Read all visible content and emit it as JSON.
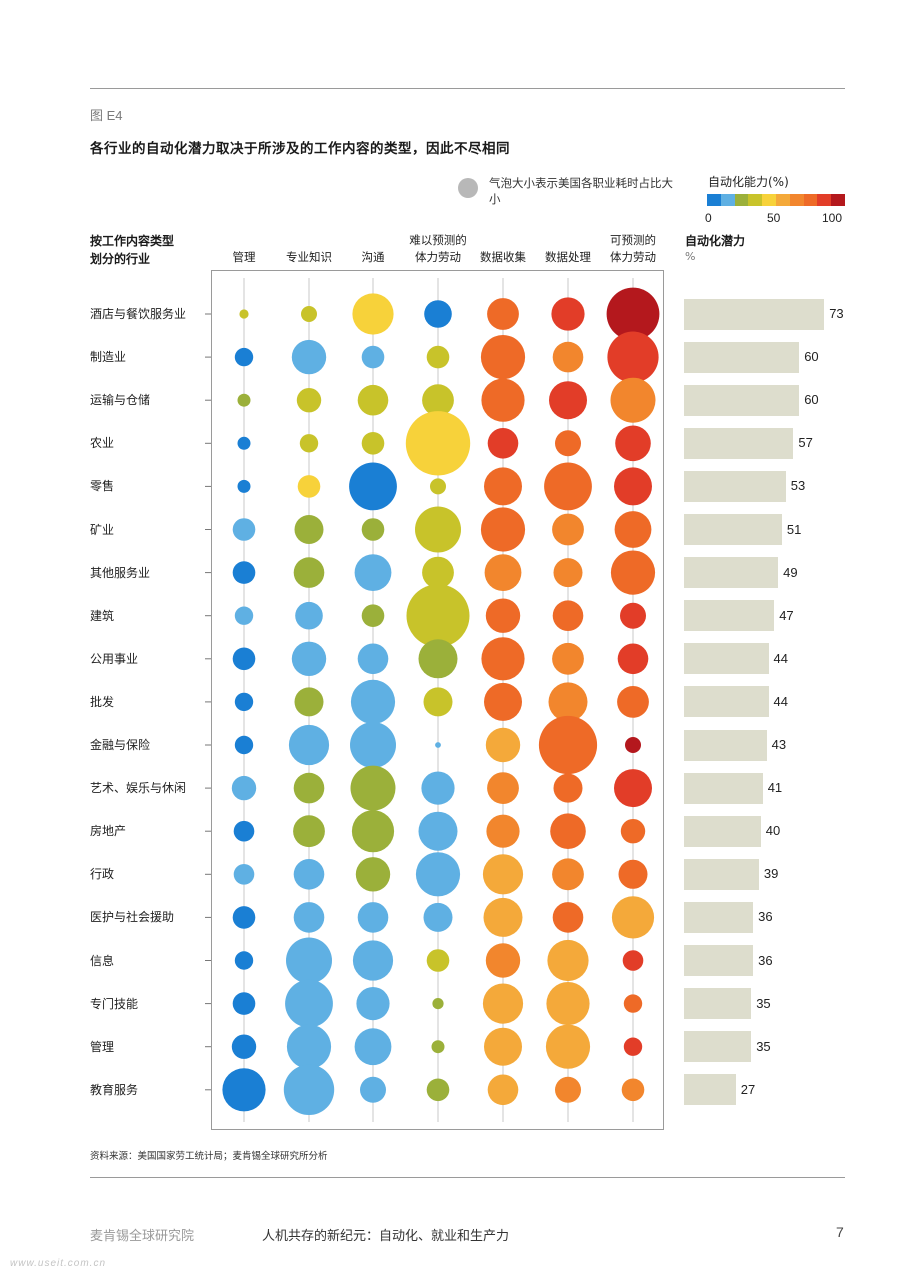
{
  "figure_label": "图 E4",
  "title": "各行业的自动化潜力取决于所涉及的工作内容的类型，因此不尽相同",
  "bubble_legend": "气泡大小表示美国各职业耗时占比大小",
  "color_scale": {
    "title": "自动化能力(%)",
    "ticks": [
      "0",
      "50",
      "100"
    ],
    "colors": [
      "#1a7fd4",
      "#5fb0e3",
      "#9bb03a",
      "#c8c32a",
      "#f7d23a",
      "#f4a93a",
      "#f2862d",
      "#ee6a27",
      "#e23d28",
      "#b4181d"
    ]
  },
  "row_header": [
    "按工作内容类型",
    "划分的行业"
  ],
  "potential_header": {
    "title": "自动化潜力",
    "unit": "%"
  },
  "source": "资料来源：美国国家劳工统计局；麦肯锡全球研究所分析",
  "footer": {
    "org": "麦肯锡全球研究院",
    "report": "人机共存的新纪元：自动化、就业和生产力",
    "page": "7"
  },
  "watermark": "www.useit.com.cn",
  "chart_data": {
    "type": "bubble-matrix",
    "columns": [
      [
        "管理"
      ],
      [
        "专业知识"
      ],
      [
        "沟通"
      ],
      [
        "难以预测的",
        "体力劳动"
      ],
      [
        "数据收集"
      ],
      [
        "数据处理"
      ],
      [
        "可预测的",
        "体力劳动"
      ]
    ],
    "rows": [
      {
        "industry": "酒店与餐饮服务业",
        "potential": 73,
        "bubbles": [
          [
            1,
            3
          ],
          [
            3,
            3
          ],
          [
            20,
            4
          ],
          [
            9,
            0
          ],
          [
            12,
            7
          ],
          [
            13,
            8
          ],
          [
            33,
            9
          ]
        ]
      },
      {
        "industry": "制造业",
        "potential": 60,
        "bubbles": [
          [
            4,
            0
          ],
          [
            14,
            1
          ],
          [
            6,
            1
          ],
          [
            6,
            3
          ],
          [
            23,
            7
          ],
          [
            11,
            6
          ],
          [
            31,
            8
          ]
        ]
      },
      {
        "industry": "运输与仓储",
        "potential": 60,
        "bubbles": [
          [
            2,
            2
          ],
          [
            7,
            3
          ],
          [
            11,
            3
          ],
          [
            12,
            3
          ],
          [
            22,
            7
          ],
          [
            17,
            8
          ],
          [
            24,
            6
          ]
        ]
      },
      {
        "industry": "农业",
        "potential": 57,
        "bubbles": [
          [
            2,
            0
          ],
          [
            4,
            3
          ],
          [
            6,
            3
          ],
          [
            49,
            4
          ],
          [
            11,
            8
          ],
          [
            8,
            7
          ],
          [
            15,
            8
          ]
        ]
      },
      {
        "industry": "零售",
        "potential": 53,
        "bubbles": [
          [
            2,
            0
          ],
          [
            6,
            4
          ],
          [
            27,
            0
          ],
          [
            3,
            3
          ],
          [
            17,
            7
          ],
          [
            27,
            7
          ],
          [
            17,
            8
          ]
        ]
      },
      {
        "industry": "矿业",
        "potential": 51,
        "bubbles": [
          [
            6,
            1
          ],
          [
            10,
            2
          ],
          [
            6,
            2
          ],
          [
            25,
            3
          ],
          [
            23,
            7
          ],
          [
            12,
            6
          ],
          [
            16,
            7
          ]
        ]
      },
      {
        "industry": "其他服务业",
        "potential": 49,
        "bubbles": [
          [
            6,
            0
          ],
          [
            11,
            2
          ],
          [
            16,
            1
          ],
          [
            12,
            3
          ],
          [
            16,
            6
          ],
          [
            10,
            6
          ],
          [
            23,
            7
          ]
        ]
      },
      {
        "industry": "建筑",
        "potential": 47,
        "bubbles": [
          [
            4,
            1
          ],
          [
            9,
            1
          ],
          [
            6,
            2
          ],
          [
            47,
            3
          ],
          [
            14,
            7
          ],
          [
            11,
            7
          ],
          [
            8,
            8
          ]
        ]
      },
      {
        "industry": "公用事业",
        "potential": 44,
        "bubbles": [
          [
            6,
            0
          ],
          [
            14,
            1
          ],
          [
            11,
            1
          ],
          [
            18,
            2
          ],
          [
            22,
            7
          ],
          [
            12,
            6
          ],
          [
            11,
            8
          ]
        ]
      },
      {
        "industry": "批发",
        "potential": 44,
        "bubbles": [
          [
            4,
            0
          ],
          [
            10,
            2
          ],
          [
            23,
            1
          ],
          [
            10,
            3
          ],
          [
            17,
            7
          ],
          [
            18,
            6
          ],
          [
            12,
            7
          ]
        ]
      },
      {
        "industry": "金融与保险",
        "potential": 43,
        "bubbles": [
          [
            4,
            0
          ],
          [
            19,
            1
          ],
          [
            25,
            1
          ],
          [
            0.4,
            1
          ],
          [
            14,
            5
          ],
          [
            40,
            7
          ],
          [
            3,
            9
          ]
        ]
      },
      {
        "industry": "艺术、娱乐与休闲",
        "potential": 41,
        "bubbles": [
          [
            7,
            1
          ],
          [
            11,
            2
          ],
          [
            24,
            2
          ],
          [
            13,
            1
          ],
          [
            12,
            6
          ],
          [
            10,
            7
          ],
          [
            17,
            8
          ]
        ]
      },
      {
        "industry": "房地产",
        "potential": 40,
        "bubbles": [
          [
            5,
            0
          ],
          [
            12,
            2
          ],
          [
            21,
            2
          ],
          [
            18,
            1
          ],
          [
            13,
            6
          ],
          [
            15,
            7
          ],
          [
            7,
            7
          ]
        ]
      },
      {
        "industry": "行政",
        "potential": 39,
        "bubbles": [
          [
            5,
            1
          ],
          [
            11,
            1
          ],
          [
            14,
            2
          ],
          [
            23,
            1
          ],
          [
            19,
            5
          ],
          [
            12,
            6
          ],
          [
            10,
            7
          ]
        ]
      },
      {
        "industry": "医护与社会援助",
        "potential": 36,
        "bubbles": [
          [
            6,
            0
          ],
          [
            11,
            1
          ],
          [
            11,
            1
          ],
          [
            10,
            1
          ],
          [
            18,
            5
          ],
          [
            11,
            7
          ],
          [
            21,
            5
          ]
        ]
      },
      {
        "industry": "信息",
        "potential": 36,
        "bubbles": [
          [
            4,
            0
          ],
          [
            25,
            1
          ],
          [
            19,
            1
          ],
          [
            6,
            3
          ],
          [
            14,
            6
          ],
          [
            20,
            5
          ],
          [
            5,
            8
          ]
        ]
      },
      {
        "industry": "专门技能",
        "potential": 35,
        "bubbles": [
          [
            6,
            0
          ],
          [
            27,
            1
          ],
          [
            13,
            1
          ],
          [
            1.5,
            2
          ],
          [
            19,
            5
          ],
          [
            22,
            5
          ],
          [
            4,
            7
          ]
        ]
      },
      {
        "industry": "管理",
        "potential": 35,
        "bubbles": [
          [
            7,
            0
          ],
          [
            23,
            1
          ],
          [
            16,
            1
          ],
          [
            2,
            2
          ],
          [
            17,
            5
          ],
          [
            23,
            5
          ],
          [
            4,
            8
          ]
        ]
      },
      {
        "industry": "教育服务",
        "potential": 27,
        "bubbles": [
          [
            22,
            0
          ],
          [
            30,
            1
          ],
          [
            8,
            1
          ],
          [
            6,
            2
          ],
          [
            11,
            5
          ],
          [
            8,
            6
          ],
          [
            6,
            6
          ]
        ]
      }
    ],
    "xlabel": "",
    "ylabel": ""
  }
}
